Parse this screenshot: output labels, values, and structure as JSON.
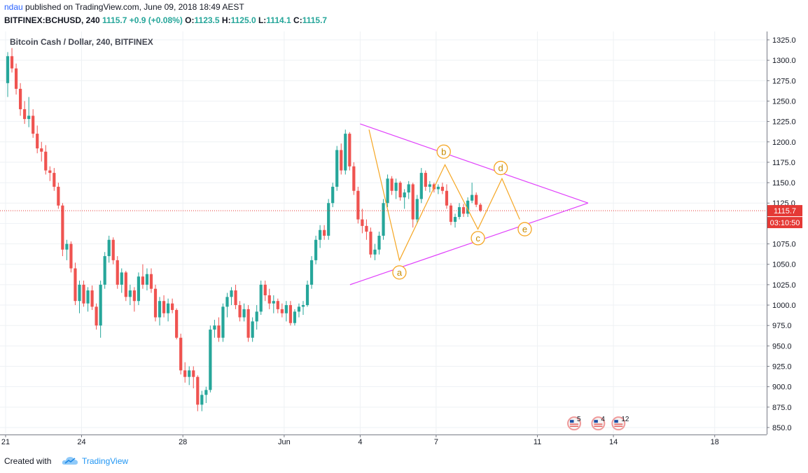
{
  "header": {
    "user": "ndau",
    "published_text": "published on TradingView.com, June 09, 2018 18:49 AEST",
    "symbol": "BITFINEX:BCHUSD, 240",
    "last": "1115.7",
    "change": "+0.9 (+0.08%)",
    "o_label": "O:",
    "o_value": "1123.5",
    "h_label": "H:",
    "h_value": "1125.0",
    "l_label": "L:",
    "l_value": "1114.1",
    "c_label": "C:",
    "c_value": "1115.7"
  },
  "chart_title": "Bitcoin Cash / Dollar, 240, BITFINEX",
  "footer": {
    "created": "Created with",
    "brand": "TradingView"
  },
  "colors": {
    "up": "#26a69a",
    "down": "#ef5350",
    "pattern": "#e040fb",
    "wave": "#f5a623",
    "wave_label": "#c58a00",
    "price_tag": "#e53935"
  },
  "chart_data": {
    "type": "candlestick",
    "title": "Bitcoin Cash / Dollar, 240, BITFINEX",
    "y_ticks": [
      "850.0",
      "875.0",
      "900.0",
      "925.0",
      "950.0",
      "975.0",
      "1000.0",
      "1025.0",
      "1050.0",
      "1075.0",
      "1100.0",
      "1125.0",
      "1150.0",
      "1175.0",
      "1200.0",
      "1225.0",
      "1250.0",
      "1275.0",
      "1300.0",
      "1325.0"
    ],
    "ylim": [
      840,
      1335
    ],
    "x_ticks": [
      {
        "label": "21",
        "day": 0
      },
      {
        "label": "24",
        "day": 3
      },
      {
        "label": "28",
        "day": 7
      },
      {
        "label": "Jun",
        "day": 11
      },
      {
        "label": "4",
        "day": 14
      },
      {
        "label": "7",
        "day": 17
      },
      {
        "label": "11",
        "day": 21
      },
      {
        "label": "14",
        "day": 24
      },
      {
        "label": "18",
        "day": 28
      }
    ],
    "last_price": "1115.7",
    "countdown": "03:10:50",
    "candles_per_day": 6,
    "candles": [
      [
        1272,
        1310,
        1255,
        1305
      ],
      [
        1305,
        1315,
        1285,
        1290
      ],
      [
        1290,
        1296,
        1258,
        1265
      ],
      [
        1265,
        1272,
        1232,
        1240
      ],
      [
        1240,
        1250,
        1222,
        1228
      ],
      [
        1228,
        1255,
        1218,
        1232
      ],
      [
        1232,
        1240,
        1205,
        1210
      ],
      [
        1210,
        1220,
        1186,
        1192
      ],
      [
        1192,
        1200,
        1176,
        1188
      ],
      [
        1188,
        1196,
        1160,
        1165
      ],
      [
        1165,
        1170,
        1152,
        1162
      ],
      [
        1162,
        1168,
        1140,
        1145
      ],
      [
        1145,
        1150,
        1118,
        1122
      ],
      [
        1122,
        1125,
        1060,
        1068
      ],
      [
        1068,
        1080,
        1055,
        1075
      ],
      [
        1075,
        1078,
        1040,
        1045
      ],
      [
        1045,
        1052,
        1000,
        1005
      ],
      [
        1005,
        1030,
        990,
        1025
      ],
      [
        1025,
        1030,
        998,
        1002
      ],
      [
        1002,
        1022,
        992,
        1018
      ],
      [
        1018,
        1024,
        994,
        998
      ],
      [
        998,
        1002,
        970,
        975
      ],
      [
        975,
        1030,
        960,
        1025
      ],
      [
        1025,
        1065,
        1020,
        1060
      ],
      [
        1060,
        1085,
        1052,
        1080
      ],
      [
        1080,
        1083,
        1050,
        1055
      ],
      [
        1055,
        1060,
        1020,
        1025
      ],
      [
        1025,
        1045,
        1015,
        1040
      ],
      [
        1040,
        1042,
        1005,
        1010
      ],
      [
        1010,
        1025,
        1000,
        1018
      ],
      [
        1018,
        1022,
        992,
        1005
      ],
      [
        1005,
        1040,
        1000,
        1035
      ],
      [
        1035,
        1050,
        1020,
        1025
      ],
      [
        1025,
        1045,
        1018,
        1038
      ],
      [
        1038,
        1045,
        1015,
        1020
      ],
      [
        1020,
        1025,
        980,
        985
      ],
      [
        985,
        1010,
        975,
        1005
      ],
      [
        1005,
        1012,
        985,
        990
      ],
      [
        990,
        1008,
        980,
        1002
      ],
      [
        1002,
        1008,
        990,
        994
      ],
      [
        994,
        996,
        958,
        960
      ],
      [
        960,
        965,
        915,
        920
      ],
      [
        920,
        930,
        905,
        912
      ],
      [
        912,
        925,
        902,
        920
      ],
      [
        920,
        925,
        898,
        912
      ],
      [
        912,
        914,
        870,
        878
      ],
      [
        878,
        895,
        870,
        890
      ],
      [
        890,
        900,
        880,
        896
      ],
      [
        896,
        975,
        893,
        970
      ],
      [
        970,
        982,
        960,
        975
      ],
      [
        975,
        985,
        955,
        960
      ],
      [
        960,
        1002,
        955,
        998
      ],
      [
        998,
        1015,
        985,
        1010
      ],
      [
        1010,
        1022,
        1000,
        1018
      ],
      [
        1018,
        1025,
        995,
        1000
      ],
      [
        1000,
        1005,
        980,
        985
      ],
      [
        985,
        1002,
        980,
        995
      ],
      [
        995,
        1000,
        955,
        960
      ],
      [
        960,
        985,
        955,
        980
      ],
      [
        980,
        1000,
        970,
        992
      ],
      [
        992,
        1030,
        988,
        1025
      ],
      [
        1025,
        1030,
        1005,
        1012
      ],
      [
        1012,
        1020,
        995,
        1002
      ],
      [
        1002,
        1012,
        990,
        1005
      ],
      [
        1005,
        1008,
        990,
        995
      ],
      [
        995,
        1002,
        985,
        990
      ],
      [
        990,
        1005,
        980,
        1000
      ],
      [
        1000,
        1005,
        975,
        978
      ],
      [
        978,
        995,
        975,
        992
      ],
      [
        992,
        1002,
        985,
        998
      ],
      [
        998,
        1005,
        988,
        1000
      ],
      [
        1000,
        1030,
        998,
        1025
      ],
      [
        1025,
        1060,
        1020,
        1055
      ],
      [
        1055,
        1085,
        1050,
        1080
      ],
      [
        1080,
        1098,
        1070,
        1092
      ],
      [
        1092,
        1098,
        1080,
        1085
      ],
      [
        1085,
        1130,
        1080,
        1125
      ],
      [
        1125,
        1150,
        1120,
        1145
      ],
      [
        1145,
        1195,
        1140,
        1190
      ],
      [
        1190,
        1198,
        1160,
        1165
      ],
      [
        1165,
        1215,
        1160,
        1210
      ],
      [
        1210,
        1212,
        1165,
        1170
      ],
      [
        1170,
        1175,
        1135,
        1140
      ],
      [
        1140,
        1145,
        1100,
        1105
      ],
      [
        1105,
        1118,
        1088,
        1097
      ],
      [
        1097,
        1105,
        1080,
        1090
      ],
      [
        1090,
        1095,
        1058,
        1062
      ],
      [
        1062,
        1075,
        1055,
        1068
      ],
      [
        1068,
        1090,
        1062,
        1085
      ],
      [
        1085,
        1130,
        1080,
        1125
      ],
      [
        1125,
        1160,
        1120,
        1155
      ],
      [
        1155,
        1158,
        1135,
        1140
      ],
      [
        1140,
        1155,
        1130,
        1150
      ],
      [
        1150,
        1152,
        1128,
        1132
      ],
      [
        1132,
        1142,
        1118,
        1138
      ],
      [
        1138,
        1152,
        1130,
        1148
      ],
      [
        1148,
        1150,
        1095,
        1105
      ],
      [
        1105,
        1135,
        1100,
        1130
      ],
      [
        1130,
        1168,
        1125,
        1162
      ],
      [
        1162,
        1165,
        1140,
        1145
      ],
      [
        1145,
        1152,
        1138,
        1148
      ],
      [
        1148,
        1150,
        1138,
        1142
      ],
      [
        1142,
        1148,
        1136,
        1145
      ],
      [
        1145,
        1150,
        1136,
        1140
      ],
      [
        1140,
        1148,
        1118,
        1122
      ],
      [
        1122,
        1125,
        1098,
        1102
      ],
      [
        1102,
        1112,
        1095,
        1108
      ],
      [
        1108,
        1125,
        1105,
        1120
      ],
      [
        1120,
        1124,
        1108,
        1112
      ],
      [
        1112,
        1132,
        1108,
        1128
      ],
      [
        1128,
        1150,
        1125,
        1135
      ],
      [
        1135,
        1138,
        1120,
        1123
      ],
      [
        1123,
        1125,
        1114,
        1115.7
      ]
    ],
    "triangle": {
      "upper": [
        [
          14.0,
          1222
        ],
        [
          23.0,
          1125
        ]
      ],
      "lower": [
        [
          13.6,
          1025
        ],
        [
          23.0,
          1125
        ]
      ]
    },
    "waves": {
      "points": [
        [
          14.35,
          1215
        ],
        [
          15.55,
          1055
        ],
        [
          17.35,
          1172
        ],
        [
          18.65,
          1093
        ],
        [
          19.6,
          1155
        ],
        [
          20.3,
          1105
        ]
      ],
      "labels": [
        {
          "text": "a",
          "day": 15.55,
          "price": 1040
        },
        {
          "text": "b",
          "day": 17.3,
          "price": 1188
        },
        {
          "text": "c",
          "day": 18.65,
          "price": 1082
        },
        {
          "text": "d",
          "day": 19.55,
          "price": 1168
        },
        {
          "text": "e",
          "day": 20.5,
          "price": 1093
        }
      ]
    },
    "events": [
      {
        "day": 22.45,
        "count": "5"
      },
      {
        "day": 23.4,
        "count": "4"
      },
      {
        "day": 24.2,
        "count": "12"
      }
    ]
  }
}
